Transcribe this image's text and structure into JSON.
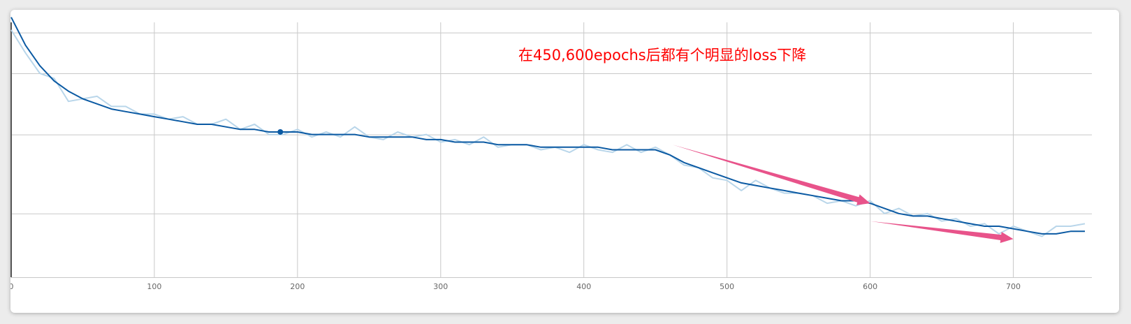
{
  "chart_data": {
    "type": "line",
    "title": "",
    "xlabel": "",
    "ylabel": "",
    "xlim": [
      0,
      750
    ],
    "ylim": [
      0,
      1
    ],
    "x_ticks": [
      0,
      100,
      200,
      300,
      400,
      500,
      600,
      700
    ],
    "x_tick_labels": [
      "0",
      "100",
      "200",
      "300",
      "400",
      "500",
      "600",
      "700"
    ],
    "grid": true,
    "series": [
      {
        "role": "raw",
        "color": "#b9d6ea",
        "x": [
          0,
          10,
          20,
          30,
          40,
          50,
          60,
          70,
          80,
          90,
          100,
          110,
          120,
          130,
          140,
          150,
          160,
          170,
          180,
          190,
          200,
          210,
          220,
          230,
          240,
          250,
          260,
          270,
          280,
          290,
          300,
          310,
          320,
          330,
          340,
          350,
          360,
          370,
          380,
          390,
          400,
          410,
          420,
          430,
          440,
          450,
          460,
          470,
          480,
          490,
          500,
          510,
          520,
          530,
          540,
          550,
          560,
          570,
          580,
          590,
          600,
          610,
          620,
          630,
          640,
          650,
          660,
          670,
          680,
          690,
          700,
          710,
          720,
          730,
          740,
          750
        ],
        "values": [
          0.97,
          0.88,
          0.8,
          0.78,
          0.69,
          0.7,
          0.71,
          0.67,
          0.67,
          0.64,
          0.64,
          0.62,
          0.63,
          0.6,
          0.6,
          0.62,
          0.58,
          0.6,
          0.56,
          0.56,
          0.58,
          0.55,
          0.57,
          0.55,
          0.59,
          0.55,
          0.54,
          0.57,
          0.55,
          0.56,
          0.53,
          0.54,
          0.52,
          0.55,
          0.51,
          0.52,
          0.52,
          0.5,
          0.51,
          0.49,
          0.52,
          0.5,
          0.49,
          0.52,
          0.49,
          0.51,
          0.48,
          0.44,
          0.43,
          0.39,
          0.38,
          0.34,
          0.38,
          0.35,
          0.33,
          0.33,
          0.32,
          0.29,
          0.3,
          0.28,
          0.3,
          0.25,
          0.27,
          0.24,
          0.25,
          0.22,
          0.23,
          0.2,
          0.21,
          0.17,
          0.2,
          0.18,
          0.16,
          0.2,
          0.2,
          0.21
        ]
      },
      {
        "role": "smoothed",
        "color": "#0b5aa3",
        "x": [
          0,
          10,
          20,
          30,
          40,
          50,
          60,
          70,
          80,
          90,
          100,
          110,
          120,
          130,
          140,
          150,
          160,
          170,
          180,
          190,
          200,
          210,
          220,
          230,
          240,
          250,
          260,
          270,
          280,
          290,
          300,
          310,
          320,
          330,
          340,
          350,
          360,
          370,
          380,
          390,
          400,
          410,
          420,
          430,
          440,
          450,
          460,
          470,
          480,
          490,
          500,
          510,
          520,
          530,
          540,
          550,
          560,
          570,
          580,
          590,
          600,
          610,
          620,
          630,
          640,
          650,
          660,
          670,
          680,
          690,
          700,
          710,
          720,
          730,
          740,
          750
        ],
        "values": [
          1.02,
          0.91,
          0.83,
          0.77,
          0.73,
          0.7,
          0.68,
          0.66,
          0.65,
          0.64,
          0.63,
          0.62,
          0.61,
          0.6,
          0.6,
          0.59,
          0.58,
          0.58,
          0.57,
          0.57,
          0.57,
          0.56,
          0.56,
          0.56,
          0.56,
          0.55,
          0.55,
          0.55,
          0.55,
          0.54,
          0.54,
          0.53,
          0.53,
          0.53,
          0.52,
          0.52,
          0.52,
          0.51,
          0.51,
          0.51,
          0.51,
          0.51,
          0.5,
          0.5,
          0.5,
          0.5,
          0.48,
          0.45,
          0.43,
          0.41,
          0.39,
          0.37,
          0.36,
          0.35,
          0.34,
          0.33,
          0.32,
          0.31,
          0.3,
          0.3,
          0.29,
          0.27,
          0.25,
          0.24,
          0.24,
          0.23,
          0.22,
          0.21,
          0.2,
          0.2,
          0.19,
          0.18,
          0.17,
          0.17,
          0.18,
          0.18
        ]
      }
    ],
    "highlight_point": {
      "x": 188,
      "y": 0.57
    },
    "annotation": {
      "text": "在450,600epochs后都有个明显的loss下降",
      "color": "#ff0000"
    },
    "arrows": [
      {
        "color": "#e8538a",
        "from": {
          "x": 462,
          "y": 0.52
        },
        "to": {
          "x": 600,
          "y": 0.29
        }
      },
      {
        "color": "#e8538a",
        "from": {
          "x": 600,
          "y": 0.22
        },
        "to": {
          "x": 700,
          "y": 0.15
        }
      }
    ]
  }
}
